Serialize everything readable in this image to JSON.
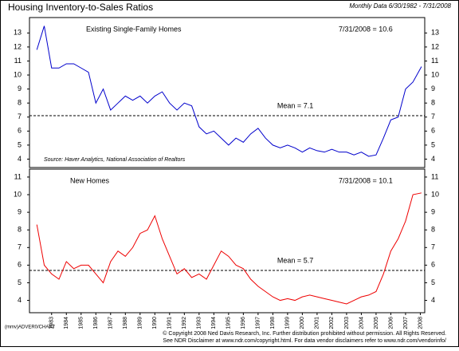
{
  "title": "Housing Inventory-to-Sales Ratios",
  "subtitle": "Monthly Data 6/30/1982 - 7/31/2008",
  "footer": [
    "© Copyright 2008 Ned Davis Research, Inc. Further distribution prohibited without permission. All Rights Reserved.",
    "See NDR Disclaimer at www.ndr.com/copyright.html. For data vendor disclaimers refer to www.ndr.com/vendorinfo/"
  ],
  "chart_code": "(mmv)ADVER0/CHART",
  "chart_data": [
    {
      "type": "line",
      "panel_title": "Existing Single-Family Homes",
      "latest_label": "7/31/2008 = 10.6",
      "source": "Source: Haver Analytics, National Association of Realtors",
      "mean": 7.1,
      "mean_label": "Mean = 7.1",
      "xlim": [
        1982,
        2008.8
      ],
      "ylim": [
        3.4,
        14.1
      ],
      "yticks": [
        4,
        5,
        6,
        7,
        8,
        9,
        10,
        11,
        12,
        13
      ],
      "x": [
        1982.5,
        1983,
        1983.5,
        1984,
        1984.5,
        1985,
        1985.5,
        1986,
        1986.5,
        1987,
        1987.5,
        1988,
        1988.5,
        1989,
        1989.5,
        1990,
        1990.5,
        1991,
        1991.5,
        1992,
        1992.5,
        1993,
        1993.5,
        1994,
        1994.5,
        1995,
        1995.5,
        1996,
        1996.5,
        1997,
        1997.5,
        1998,
        1998.5,
        1999,
        1999.5,
        2000,
        2000.5,
        2001,
        2001.5,
        2002,
        2002.5,
        2003,
        2003.5,
        2004,
        2004.5,
        2005,
        2005.5,
        2006,
        2006.5,
        2007,
        2007.5,
        2008,
        2008.58
      ],
      "series": [
        {
          "color": "#0000cc",
          "values": [
            11.8,
            13.5,
            10.5,
            10.5,
            10.8,
            10.8,
            10.5,
            10.2,
            8.0,
            9.0,
            7.5,
            8.0,
            8.5,
            8.2,
            8.5,
            8.0,
            8.5,
            8.8,
            8.0,
            7.5,
            8.0,
            7.8,
            6.3,
            5.8,
            6.0,
            5.5,
            5.0,
            5.5,
            5.2,
            5.8,
            6.2,
            5.5,
            5.0,
            4.8,
            5.0,
            4.8,
            4.5,
            4.8,
            4.6,
            4.5,
            4.7,
            4.5,
            4.5,
            4.3,
            4.5,
            4.2,
            4.3,
            5.5,
            6.8,
            7.0,
            9.0,
            9.5,
            10.6
          ]
        }
      ]
    },
    {
      "type": "line",
      "panel_title": "New Homes",
      "latest_label": "7/31/2008 = 10.1",
      "mean": 5.7,
      "mean_label": "Mean = 5.7",
      "xlim": [
        1982,
        2008.8
      ],
      "ylim": [
        3.3,
        11.45
      ],
      "yticks": [
        4,
        5,
        6,
        7,
        8,
        9,
        10,
        11
      ],
      "xticks": [
        {
          "value": 1983.5,
          "label": "1983"
        },
        {
          "value": 1984.5,
          "label": "1984"
        },
        {
          "value": 1985.5,
          "label": "1985"
        },
        {
          "value": 1986.5,
          "label": "1986"
        },
        {
          "value": 1987.5,
          "label": "1987"
        },
        {
          "value": 1988.5,
          "label": "1988"
        },
        {
          "value": 1989.5,
          "label": "1989"
        },
        {
          "value": 1990.5,
          "label": "1990"
        },
        {
          "value": 1991.5,
          "label": "1991"
        },
        {
          "value": 1992.5,
          "label": "1992"
        },
        {
          "value": 1993.5,
          "label": "1993"
        },
        {
          "value": 1994.5,
          "label": "1994"
        },
        {
          "value": 1995.5,
          "label": "1995"
        },
        {
          "value": 1996.5,
          "label": "1996"
        },
        {
          "value": 1997.5,
          "label": "1997"
        },
        {
          "value": 1998.5,
          "label": "1998"
        },
        {
          "value": 1999.5,
          "label": "1999"
        },
        {
          "value": 2000.5,
          "label": "2000"
        },
        {
          "value": 2001.5,
          "label": "2001"
        },
        {
          "value": 2002.5,
          "label": "2002"
        },
        {
          "value": 2003.5,
          "label": "2003"
        },
        {
          "value": 2004.5,
          "label": "2004"
        },
        {
          "value": 2005.5,
          "label": "2005"
        },
        {
          "value": 2006.5,
          "label": "2006"
        },
        {
          "value": 2007.5,
          "label": "2007"
        },
        {
          "value": 2008.5,
          "label": "2008"
        }
      ],
      "x": [
        1982.5,
        1983,
        1983.5,
        1984,
        1984.5,
        1985,
        1985.5,
        1986,
        1986.5,
        1987,
        1987.5,
        1988,
        1988.5,
        1989,
        1989.5,
        1990,
        1990.5,
        1991,
        1991.5,
        1992,
        1992.5,
        1993,
        1993.5,
        1994,
        1994.5,
        1995,
        1995.5,
        1996,
        1996.5,
        1997,
        1997.5,
        1998,
        1998.5,
        1999,
        1999.5,
        2000,
        2000.5,
        2001,
        2001.5,
        2002,
        2002.5,
        2003,
        2003.5,
        2004,
        2004.5,
        2005,
        2005.5,
        2006,
        2006.5,
        2007,
        2007.5,
        2008,
        2008.58
      ],
      "series": [
        {
          "color": "#ee0000",
          "values": [
            8.3,
            6.0,
            5.5,
            5.2,
            6.2,
            5.8,
            6.0,
            6.0,
            5.5,
            5.0,
            6.2,
            6.8,
            6.5,
            7.0,
            7.8,
            8.0,
            8.8,
            7.5,
            6.5,
            5.5,
            5.8,
            5.3,
            5.5,
            5.2,
            6.0,
            6.8,
            6.5,
            6.0,
            5.8,
            5.2,
            4.8,
            4.5,
            4.2,
            4.0,
            4.1,
            4.0,
            4.2,
            4.3,
            4.2,
            4.1,
            4.0,
            3.9,
            3.8,
            4.0,
            4.2,
            4.3,
            4.5,
            5.5,
            6.8,
            7.5,
            8.5,
            10.0,
            10.1
          ]
        }
      ]
    }
  ]
}
